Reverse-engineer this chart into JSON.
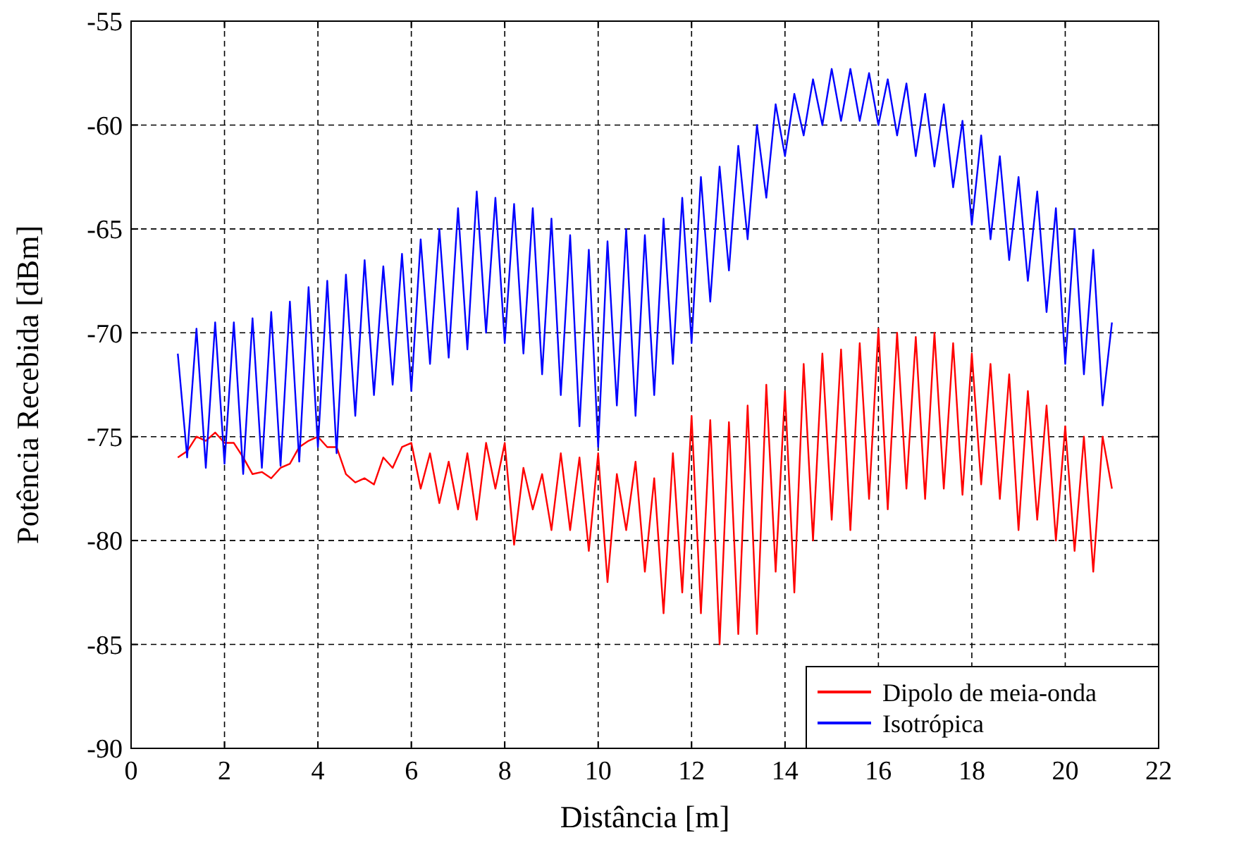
{
  "chart_data": {
    "type": "line",
    "xlabel": "Distância [m]",
    "ylabel": "Potência Recebida [dBm]",
    "x": [
      1.0,
      1.2,
      1.4,
      1.6,
      1.8,
      2.0,
      2.2,
      2.4,
      2.6,
      2.8,
      3.0,
      3.2,
      3.4,
      3.6,
      3.8,
      4.0,
      4.2,
      4.4,
      4.6,
      4.8,
      5.0,
      5.2,
      5.4,
      5.6,
      5.8,
      6.0,
      6.2,
      6.4,
      6.6,
      6.8,
      7.0,
      7.2,
      7.4,
      7.6,
      7.8,
      8.0,
      8.2,
      8.4,
      8.6,
      8.8,
      9.0,
      9.2,
      9.4,
      9.6,
      9.8,
      10.0,
      10.2,
      10.4,
      10.6,
      10.8,
      11.0,
      11.2,
      11.4,
      11.6,
      11.8,
      12.0,
      12.2,
      12.4,
      12.6,
      12.8,
      13.0,
      13.2,
      13.4,
      13.6,
      13.8,
      14.0,
      14.2,
      14.4,
      14.6,
      14.8,
      15.0,
      15.2,
      15.4,
      15.6,
      15.8,
      16.0,
      16.2,
      16.4,
      16.6,
      16.8,
      17.0,
      17.2,
      17.4,
      17.6,
      17.8,
      18.0,
      18.2,
      18.4,
      18.6,
      18.8,
      19.0,
      19.2,
      19.4,
      19.6,
      19.8,
      20.0,
      20.2,
      20.4,
      20.6,
      20.8,
      21.0
    ],
    "series": [
      {
        "name": "Dipolo de meia-onda",
        "color": "#ff0000",
        "values": [
          -76,
          -75.7,
          -75,
          -75.2,
          -74.8,
          -75.3,
          -75.3,
          -76,
          -76.8,
          -76.7,
          -77,
          -76.5,
          -76.3,
          -75.5,
          -75.2,
          -75,
          -75.5,
          -75.5,
          -76.8,
          -77.2,
          -77,
          -77.3,
          -76,
          -76.5,
          -75.5,
          -75.3,
          -77.5,
          -75.8,
          -78.2,
          -76.2,
          -78.5,
          -75.8,
          -79,
          -75.3,
          -77.5,
          -75.3,
          -80.2,
          -76.5,
          -78.5,
          -76.8,
          -79.5,
          -75.8,
          -79.5,
          -76,
          -80.5,
          -75.8,
          -82,
          -76.8,
          -79.5,
          -76.2,
          -81.5,
          -77,
          -83.5,
          -75.8,
          -82.5,
          -74,
          -83.5,
          -74.2,
          -85,
          -74.3,
          -84.5,
          -73.5,
          -84.5,
          -72.5,
          -81.5,
          -72.8,
          -82.5,
          -71.5,
          -80,
          -71,
          -79,
          -70.8,
          -79.5,
          -70.5,
          -78,
          -69.8,
          -78.5,
          -70,
          -77.5,
          -70.2,
          -78,
          -70,
          -77.5,
          -70.5,
          -77.8,
          -71,
          -77.3,
          -71.5,
          -78,
          -72,
          -79.5,
          -72.8,
          -79,
          -73.5,
          -80,
          -74.5,
          -80.5,
          -75,
          -81.5,
          -75,
          -77.5
        ]
      },
      {
        "name": "Isotrópica",
        "color": "#0000ff",
        "values": [
          -71,
          -76,
          -69.8,
          -76.5,
          -69.5,
          -76.3,
          -69.5,
          -76.8,
          -69.3,
          -76.5,
          -69,
          -76.4,
          -68.5,
          -76.2,
          -67.8,
          -75.5,
          -67.5,
          -75.8,
          -67.2,
          -74,
          -66.5,
          -73,
          -66.8,
          -72.5,
          -66.2,
          -72.8,
          -65.5,
          -71.5,
          -65,
          -71.2,
          -64,
          -70.8,
          -63.2,
          -70,
          -63.5,
          -70.5,
          -63.8,
          -71,
          -64,
          -72,
          -64.5,
          -73,
          -65.3,
          -74.5,
          -66,
          -75.5,
          -65.6,
          -73.5,
          -65,
          -74,
          -65.3,
          -73,
          -64.5,
          -71.5,
          -63.5,
          -70.5,
          -62.5,
          -68.5,
          -62,
          -67,
          -61,
          -65.5,
          -60,
          -63.5,
          -59,
          -61.5,
          -58.5,
          -60.5,
          -57.8,
          -60,
          -57.3,
          -59.8,
          -57.3,
          -59.8,
          -57.5,
          -60,
          -57.8,
          -60.5,
          -58,
          -61.5,
          -58.5,
          -62,
          -59,
          -63,
          -59.8,
          -64.8,
          -60.5,
          -65.5,
          -61.5,
          -66.5,
          -62.5,
          -67.5,
          -63.2,
          -69,
          -64,
          -71.5,
          -65,
          -72,
          -66,
          -73.5,
          -69.5
        ]
      }
    ],
    "xlim": [
      0,
      22
    ],
    "xticks": [
      0,
      2,
      4,
      6,
      8,
      10,
      12,
      14,
      16,
      18,
      20,
      22
    ],
    "ylim": [
      -90,
      -55
    ],
    "yticks": [
      -90,
      -85,
      -80,
      -75,
      -70,
      -65,
      -60,
      -55
    ],
    "grid": true,
    "legend": "bottom right",
    "line_style": "solid"
  }
}
